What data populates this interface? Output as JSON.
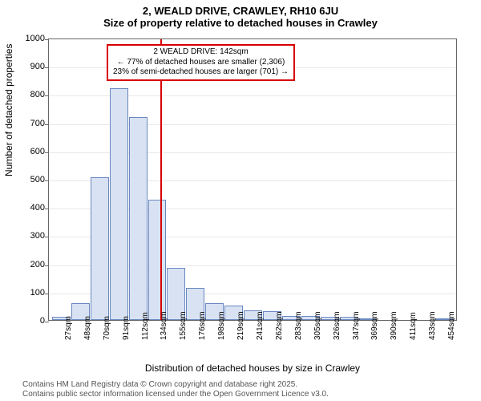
{
  "titles": {
    "line1": "2, WEALD DRIVE, CRAWLEY, RH10 6JU",
    "line2": "Size of property relative to detached houses in Crawley"
  },
  "chart": {
    "type": "histogram",
    "ylabel": "Number of detached properties",
    "xlabel": "Distribution of detached houses by size in Crawley",
    "ylim": [
      0,
      1000
    ],
    "ytick_step": 100,
    "background_color": "#ffffff",
    "grid_color": "#e8e8e8",
    "axis_color": "#666666",
    "bar_fill": "#d8e2f2",
    "bar_border": "#6a88c0",
    "ref_line_color": "#d80000",
    "ref_line_x_category": "142sqm",
    "annotation": {
      "line1": "2 WEALD DRIVE: 142sqm",
      "line2": "← 77% of detached houses are smaller (2,306)",
      "line3": "23% of semi-detached houses are larger (701) →",
      "border_color": "#d80000"
    },
    "x_categories": [
      "27sqm",
      "48sqm",
      "70sqm",
      "91sqm",
      "112sqm",
      "134sqm",
      "155sqm",
      "176sqm",
      "198sqm",
      "219sqm",
      "241sqm",
      "262sqm",
      "283sqm",
      "305sqm",
      "326sqm",
      "347sqm",
      "369sqm",
      "390sqm",
      "411sqm",
      "433sqm",
      "454sqm"
    ],
    "values": [
      10,
      60,
      505,
      820,
      720,
      425,
      185,
      115,
      60,
      50,
      35,
      30,
      15,
      15,
      10,
      10,
      5,
      0,
      0,
      0,
      5
    ]
  },
  "footer": {
    "line1": "Contains HM Land Registry data © Crown copyright and database right 2025.",
    "line2": "Contains public sector information licensed under the Open Government Licence v3.0."
  }
}
